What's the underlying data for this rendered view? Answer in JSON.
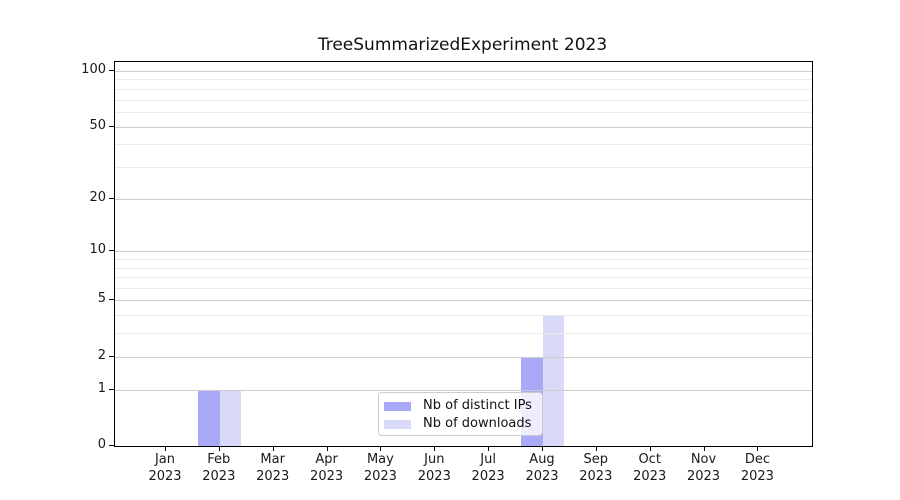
{
  "figure": {
    "background": "#ffffff"
  },
  "chart_data": {
    "type": "bar",
    "title": "TreeSummarizedExperiment 2023",
    "categories": [
      "Jan",
      "Feb",
      "Mar",
      "Apr",
      "May",
      "Jun",
      "Jul",
      "Aug",
      "Sep",
      "Oct",
      "Nov",
      "Dec"
    ],
    "category_year": "2023",
    "series": [
      {
        "name": "Nb of distinct IPs",
        "color": "#a9a9f8",
        "values": [
          0,
          1,
          0,
          0,
          0,
          0,
          0,
          2,
          0,
          0,
          0,
          0
        ]
      },
      {
        "name": "Nb of downloads",
        "color": "#d9d9f8",
        "values": [
          0,
          1,
          0,
          0,
          0,
          0,
          0,
          4,
          0,
          0,
          0,
          0
        ]
      }
    ],
    "xlabel": "",
    "ylabel": "",
    "yaxis": {
      "scale": "log1p",
      "tick_values": [
        100,
        50,
        20,
        10,
        5,
        2,
        1,
        0
      ],
      "tick_labels": [
        "100",
        "50",
        "20",
        "10",
        "5",
        "2",
        "1",
        "0"
      ],
      "minor_gridline_values": [
        3,
        4,
        6,
        7,
        8,
        9,
        30,
        40,
        60,
        70,
        80,
        90
      ],
      "ylim": [
        0,
        112
      ],
      "major_grid_color": "#cccccc",
      "minor_grid_color": "#ebebeb"
    },
    "legend": {
      "position": "inside-bottom-center",
      "entries": [
        "Nb of distinct IPs",
        "Nb of downloads"
      ]
    }
  }
}
